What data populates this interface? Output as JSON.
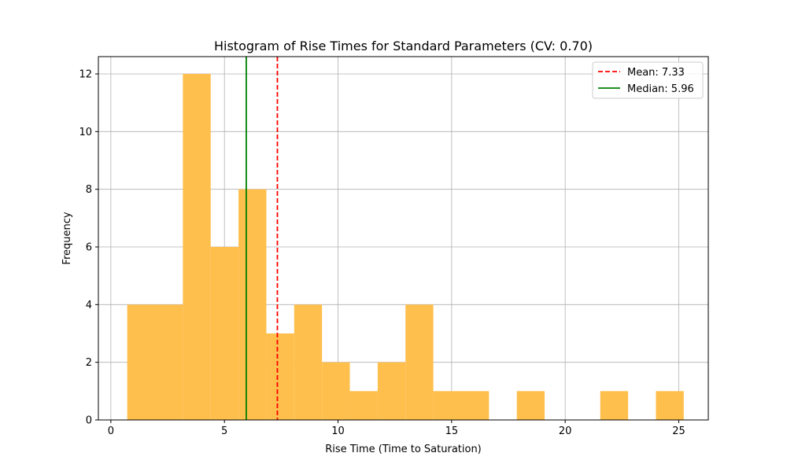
{
  "chart_data": {
    "type": "bar",
    "title": "Histogram of Rise Times for Standard Parameters (CV: 0.70)",
    "xlabel": "Rise Time (Time to Saturation)",
    "ylabel": "Frequency",
    "xlim": [
      -0.55,
      26.3
    ],
    "ylim": [
      0,
      12.6
    ],
    "xticks": [
      0,
      5,
      10,
      15,
      20,
      25
    ],
    "yticks": [
      0,
      2,
      4,
      6,
      8,
      10,
      12
    ],
    "grid": true,
    "bar_color": "#ffbf4d",
    "bin_edges": [
      0.72,
      1.945,
      3.17,
      4.395,
      5.62,
      6.845,
      8.07,
      9.295,
      10.52,
      11.745,
      12.97,
      14.195,
      15.42,
      16.645,
      17.87,
      19.095,
      20.32,
      21.545,
      22.77,
      23.995,
      25.22
    ],
    "bins": [
      {
        "x0": 0.72,
        "x1": 3.17,
        "count": 4
      },
      {
        "x0": 3.17,
        "x1": 4.395,
        "count": 12
      },
      {
        "x0": 4.395,
        "x1": 5.62,
        "count": 6
      },
      {
        "x0": 5.62,
        "x1": 6.845,
        "count": 8
      },
      {
        "x0": 6.845,
        "x1": 8.07,
        "count": 3
      },
      {
        "x0": 8.07,
        "x1": 9.295,
        "count": 4
      },
      {
        "x0": 9.295,
        "x1": 10.52,
        "count": 2
      },
      {
        "x0": 10.52,
        "x1": 11.745,
        "count": 1
      },
      {
        "x0": 11.745,
        "x1": 12.97,
        "count": 2
      },
      {
        "x0": 12.97,
        "x1": 14.195,
        "count": 4
      },
      {
        "x0": 14.195,
        "x1": 16.645,
        "count": 1
      },
      {
        "x0": 17.87,
        "x1": 19.095,
        "count": 1
      },
      {
        "x0": 21.545,
        "x1": 22.77,
        "count": 1
      },
      {
        "x0": 23.995,
        "x1": 25.22,
        "count": 1
      }
    ],
    "lines": [
      {
        "label": "Mean: 7.33",
        "x": 7.33,
        "color": "#ff0000",
        "style": "dashed"
      },
      {
        "label": "Median: 5.96",
        "x": 5.96,
        "color": "#008000",
        "style": "solid"
      }
    ],
    "legend_position": "upper right"
  }
}
